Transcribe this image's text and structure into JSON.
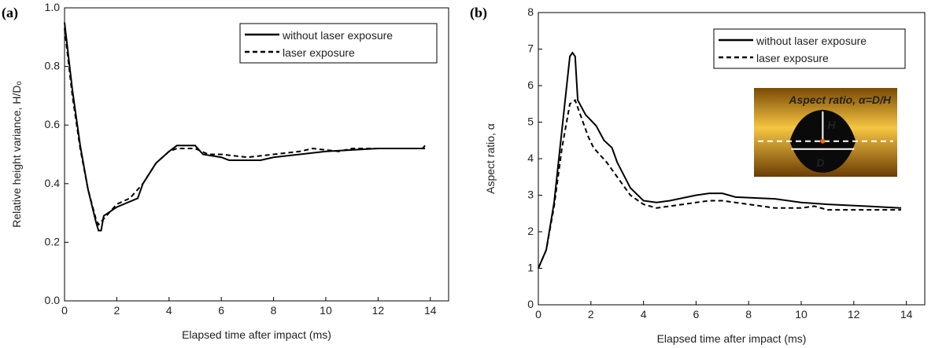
{
  "chart_data": [
    {
      "type": "line",
      "panel_label": "(a)",
      "xlabel": "Elapsed time after impact (ms)",
      "ylabel": "Relative height variance, H/Dₒ",
      "xlim": [
        0,
        14.7
      ],
      "xticks": [
        0,
        2,
        4,
        6,
        8,
        10,
        12,
        14
      ],
      "ylim": [
        0,
        1
      ],
      "yticks": [
        {
          "value": 0,
          "label": "0.0"
        },
        0.2,
        0.4,
        0.6,
        0.8,
        {
          "value": 1,
          "label": "1.0"
        }
      ],
      "legend": "upper right",
      "series": [
        {
          "name": "without laser exposure",
          "color": "#000000",
          "dash": "solid",
          "x": [
            0,
            0.3,
            0.6,
            0.9,
            1.2,
            1.3,
            1.4,
            1.5,
            2,
            2.8,
            3,
            3.5,
            4,
            4.3,
            5,
            5.3,
            6,
            6.3,
            7.5,
            8,
            9,
            10,
            12,
            13.7,
            13.8
          ],
          "values": [
            0.95,
            0.72,
            0.53,
            0.38,
            0.27,
            0.24,
            0.24,
            0.29,
            0.32,
            0.35,
            0.4,
            0.47,
            0.51,
            0.53,
            0.53,
            0.5,
            0.49,
            0.48,
            0.48,
            0.49,
            0.5,
            0.51,
            0.52,
            0.52,
            0.53
          ]
        },
        {
          "name": "laser exposure",
          "color": "#000000",
          "dash": "dashed",
          "x": [
            0,
            0.3,
            0.6,
            0.9,
            1.2,
            1.3,
            1.5,
            2,
            2.5,
            3,
            3.5,
            4,
            4.3,
            5,
            5.5,
            6,
            7,
            8,
            9,
            9.5,
            10.5,
            11,
            13.8
          ],
          "values": [
            0.93,
            0.7,
            0.52,
            0.38,
            0.28,
            0.26,
            0.28,
            0.33,
            0.35,
            0.4,
            0.47,
            0.51,
            0.52,
            0.52,
            0.5,
            0.5,
            0.49,
            0.5,
            0.51,
            0.52,
            0.51,
            0.52,
            0.52
          ]
        }
      ]
    },
    {
      "type": "line",
      "panel_label": "(b)",
      "xlabel": "Elapsed time after impact (ms)",
      "ylabel": "Aspect ratio, α",
      "xlim": [
        0,
        14.7
      ],
      "xticks": [
        0,
        2,
        4,
        6,
        8,
        10,
        12,
        14
      ],
      "ylim": [
        0,
        8
      ],
      "yticks": [
        0,
        1,
        2,
        3,
        4,
        5,
        6,
        7,
        8
      ],
      "legend": "upper right",
      "inset": {
        "title": "Aspect ratio, α=D/H",
        "labels": [
          "H",
          "D"
        ]
      },
      "series": [
        {
          "name": "without laser exposure",
          "color": "#000000",
          "dash": "solid",
          "x": [
            0,
            0.3,
            0.6,
            0.9,
            1.2,
            1.3,
            1.4,
            1.5,
            1.8,
            2.2,
            2.5,
            2.8,
            3,
            3.5,
            4,
            4.5,
            5,
            6,
            6.5,
            7,
            7.5,
            9,
            10,
            11,
            12.5,
            13.8
          ],
          "values": [
            1,
            1.5,
            2.8,
            4.8,
            6.8,
            6.9,
            6.8,
            5.6,
            5.2,
            4.9,
            4.5,
            4.3,
            3.9,
            3.2,
            2.85,
            2.8,
            2.85,
            3,
            3.05,
            3.05,
            2.95,
            2.9,
            2.8,
            2.75,
            2.7,
            2.65
          ]
        },
        {
          "name": "laser exposure",
          "color": "#000000",
          "dash": "dashed",
          "x": [
            0,
            0.3,
            0.6,
            0.9,
            1.2,
            1.4,
            1.6,
            1.9,
            2.1,
            2.6,
            3,
            3.5,
            4,
            4.5,
            5,
            6,
            6.5,
            7,
            8,
            9,
            10,
            10.5,
            11,
            12,
            13.8
          ],
          "values": [
            1,
            1.5,
            2.7,
            4.3,
            5.5,
            5.6,
            5.2,
            4.6,
            4.3,
            3.9,
            3.5,
            3,
            2.75,
            2.65,
            2.7,
            2.8,
            2.85,
            2.85,
            2.75,
            2.65,
            2.65,
            2.7,
            2.6,
            2.6,
            2.6
          ]
        }
      ]
    }
  ]
}
